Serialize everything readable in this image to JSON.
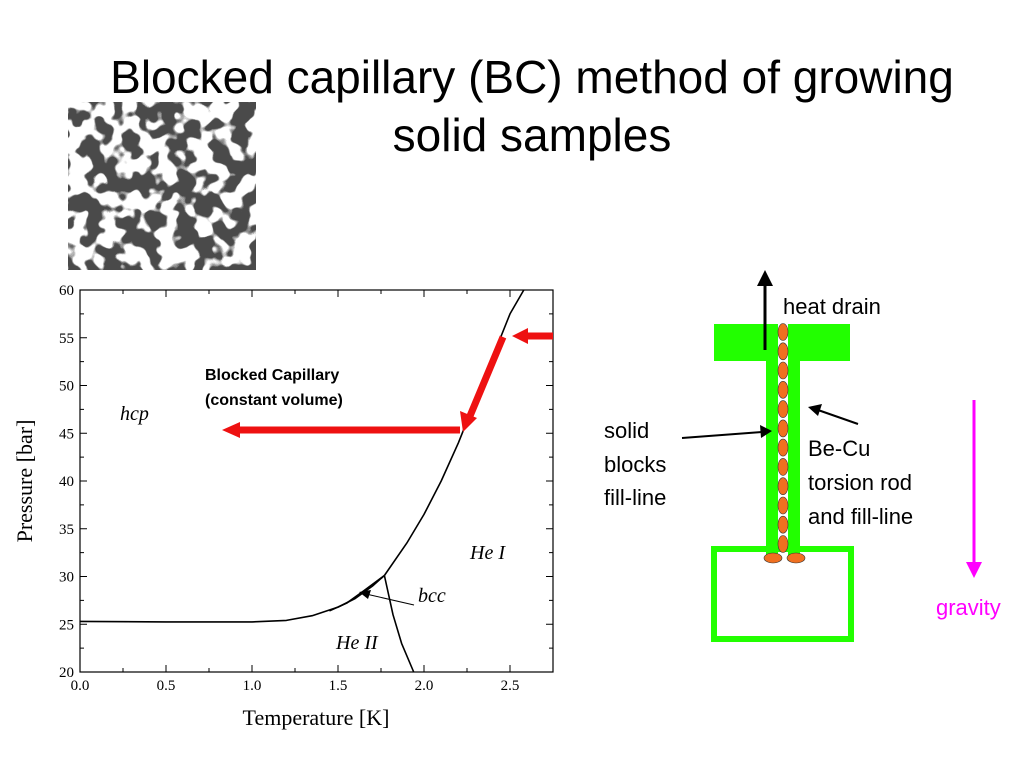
{
  "slide": {
    "title_line1": "Blocked capillary (BC) method of growing",
    "title_line2": "solid samples"
  },
  "chart_data": {
    "type": "line",
    "xlabel": "Temperature [K]",
    "ylabel": "Pressure [bar]",
    "xlim": [
      0.0,
      2.75
    ],
    "ylim": [
      20,
      60
    ],
    "x_ticks": [
      "0.0",
      "0.5",
      "1.0",
      "1.5",
      "2.0",
      "2.5"
    ],
    "y_ticks": [
      "20",
      "25",
      "30",
      "35",
      "40",
      "45",
      "50",
      "55",
      "60"
    ],
    "grid": false,
    "series": [
      {
        "points": [
          [
            0.0,
            25.3
          ],
          [
            0.5,
            25.25
          ],
          [
            1.0,
            25.25
          ],
          [
            1.2,
            25.4
          ],
          [
            1.35,
            25.9
          ],
          [
            1.5,
            26.8
          ],
          [
            1.6,
            27.7
          ],
          [
            1.7,
            29.0
          ],
          [
            1.77,
            30.1
          ]
        ]
      },
      {
        "points": [
          [
            1.77,
            30.1
          ],
          [
            1.9,
            33.5
          ],
          [
            2.0,
            36.5
          ],
          [
            2.1,
            40.0
          ],
          [
            2.2,
            44.0
          ],
          [
            2.3,
            48.5
          ],
          [
            2.4,
            53.0
          ],
          [
            2.5,
            57.5
          ],
          [
            2.58,
            61.0
          ]
        ]
      },
      {
        "points": [
          [
            1.77,
            30.1
          ],
          [
            1.82,
            26.0
          ],
          [
            1.87,
            23.0
          ],
          [
            1.94,
            19.5
          ]
        ]
      },
      {
        "points": [
          [
            1.45,
            26.4
          ],
          [
            1.55,
            27.2
          ],
          [
            1.65,
            28.5
          ],
          [
            1.77,
            30.1
          ]
        ]
      }
    ],
    "region_labels": [
      "hcp",
      "He I",
      "bcc",
      "He II"
    ],
    "annotation": {
      "line1": "Blocked Capillary",
      "line2": "(constant volume)"
    },
    "arrow_color": "#ee1111"
  },
  "diagram": {
    "heat_drain": "heat drain",
    "solid_blocks_lines": [
      "solid",
      "blocks",
      "fill-line"
    ],
    "torsion_rod_lines": [
      "Be-Cu",
      "torsion rod",
      "and fill-line"
    ],
    "gravity": "gravity",
    "colors": {
      "green": "#22ff00",
      "orange": "#f07020",
      "magenta": "#ff00ff"
    }
  }
}
